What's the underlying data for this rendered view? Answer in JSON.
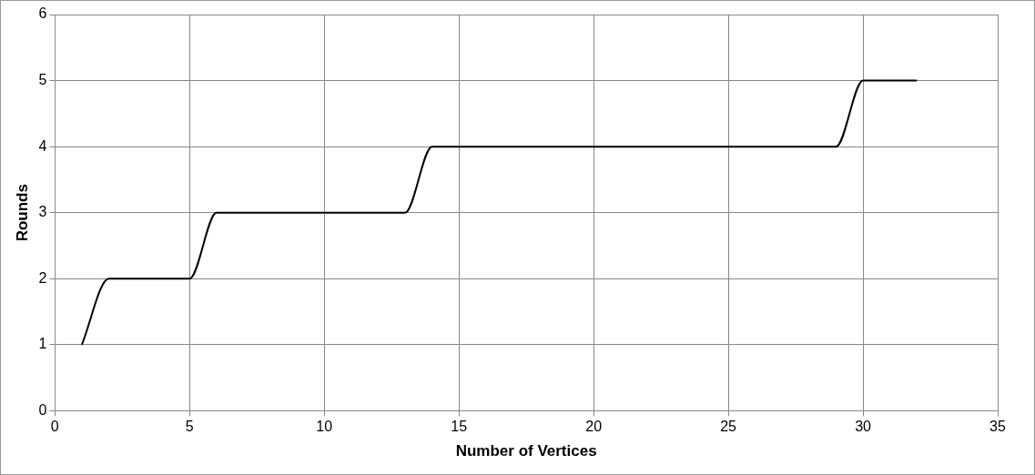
{
  "chart_data": {
    "type": "line",
    "xlabel": "Number of Vertices",
    "ylabel": "Rounds",
    "x": [
      1,
      2,
      3,
      4,
      5,
      6,
      7,
      8,
      9,
      10,
      11,
      12,
      13,
      14,
      15,
      16,
      17,
      18,
      19,
      20,
      21,
      22,
      23,
      24,
      25,
      26,
      27,
      28,
      29,
      30,
      31,
      32
    ],
    "series": [
      {
        "color": "#000000",
        "values": [
          1,
          2,
          2,
          2,
          2,
          3,
          3,
          3,
          3,
          3,
          3,
          3,
          3,
          4,
          4,
          4,
          4,
          4,
          4,
          4,
          4,
          4,
          4,
          4,
          4,
          4,
          4,
          4,
          4,
          5,
          5,
          5
        ]
      }
    ],
    "xlim": [
      0,
      35
    ],
    "xticks": [
      0,
      5,
      10,
      15,
      20,
      25,
      30,
      35
    ],
    "ylim": [
      0,
      6
    ],
    "yticks": [
      0,
      1,
      2,
      3,
      4,
      5,
      6
    ],
    "grid": true,
    "legend": false,
    "marker": "none",
    "line_style": "solid"
  }
}
